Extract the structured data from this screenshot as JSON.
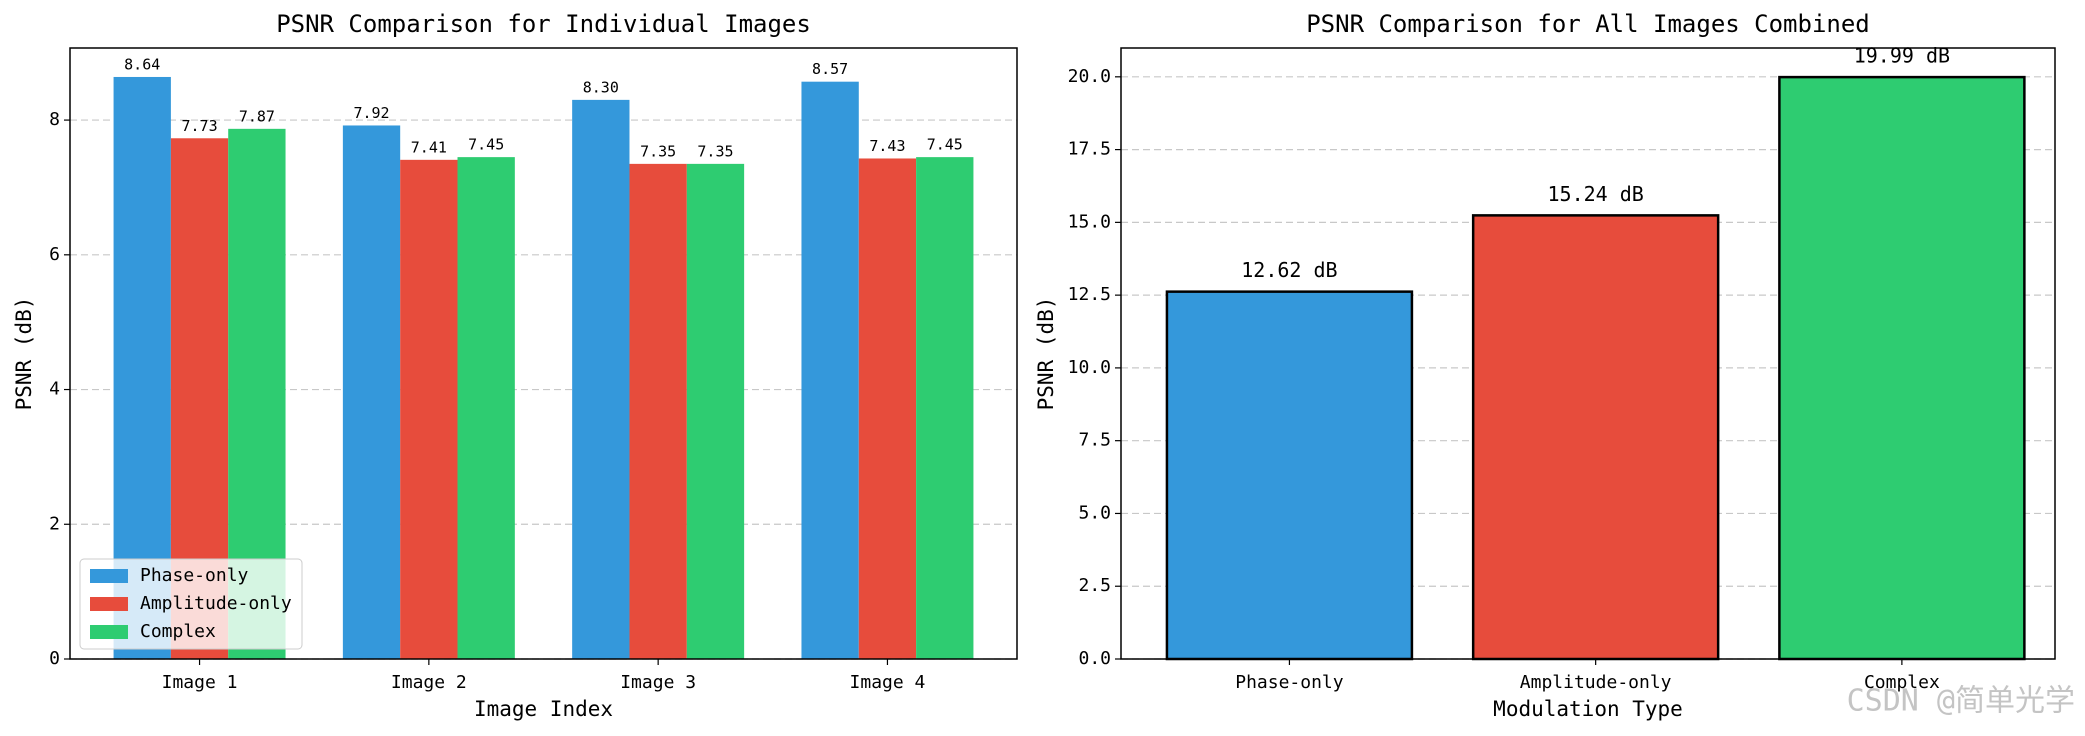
{
  "chart_data": [
    {
      "type": "bar",
      "title": "PSNR Comparison for Individual Images",
      "x_label": "Image Index",
      "y_label": "PSNR (dB)",
      "categories": [
        "Image 1",
        "Image 2",
        "Image 3",
        "Image 4"
      ],
      "series": [
        {
          "name": "Phase-only",
          "color": "#3498db",
          "values": [
            8.64,
            7.92,
            8.3,
            8.57
          ],
          "value_labels": [
            "8.64",
            "7.92",
            "8.30",
            "8.57"
          ]
        },
        {
          "name": "Amplitude-only",
          "color": "#e74c3c",
          "values": [
            7.73,
            7.41,
            7.35,
            7.43
          ],
          "value_labels": [
            "7.73",
            "7.41",
            "7.35",
            "7.43"
          ]
        },
        {
          "name": "Complex",
          "color": "#2ecc71",
          "values": [
            7.87,
            7.45,
            7.35,
            7.45
          ],
          "value_labels": [
            "7.87",
            "7.45",
            "7.35",
            "7.45"
          ]
        }
      ],
      "ylim": [
        0,
        9.07
      ],
      "yticks": [
        0,
        2,
        4,
        6,
        8
      ],
      "grid": true,
      "legend": "lower left"
    },
    {
      "type": "bar",
      "title": "PSNR Comparison for All Images Combined",
      "x_label": "Modulation Type",
      "y_label": "PSNR (dB)",
      "categories": [
        "Phase-only",
        "Amplitude-only",
        "Complex"
      ],
      "values": [
        12.62,
        15.24,
        19.99
      ],
      "value_labels": [
        "12.62 dB",
        "15.24 dB",
        "19.99 dB"
      ],
      "colors": [
        "#3498db",
        "#e74c3c",
        "#2ecc71"
      ],
      "edge_color": "#000000",
      "ylim": [
        0,
        20.99
      ],
      "yticks": [
        {
          "value": 0,
          "label": "0.0"
        },
        2.5,
        {
          "value": 5,
          "label": "5.0"
        },
        7.5,
        {
          "value": 10,
          "label": "10.0"
        },
        12.5,
        {
          "value": 15,
          "label": "15.0"
        },
        17.5,
        {
          "value": 20,
          "label": "20.0"
        }
      ],
      "grid": true
    }
  ],
  "watermark": "CSDN @简单光学"
}
